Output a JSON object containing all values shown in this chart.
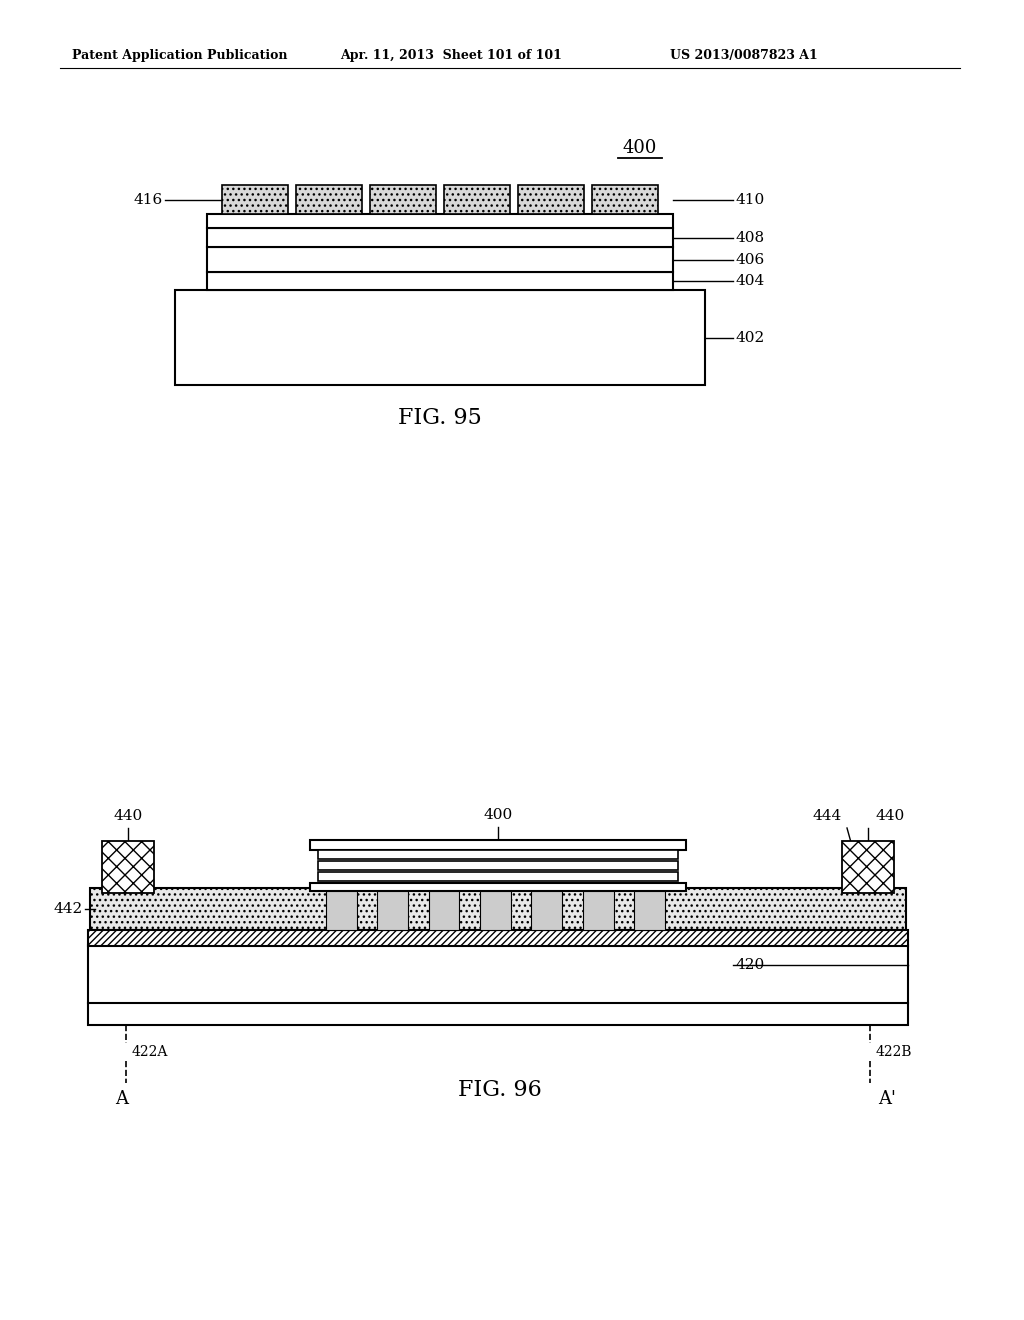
{
  "header_left": "Patent Application Publication",
  "header_mid": "Apr. 11, 2013  Sheet 101 of 101",
  "header_right": "US 2013/0087823 A1",
  "fig95_label": "FIG. 95",
  "fig96_label": "FIG. 96",
  "bg_color": "#ffffff",
  "line_color": "#000000"
}
